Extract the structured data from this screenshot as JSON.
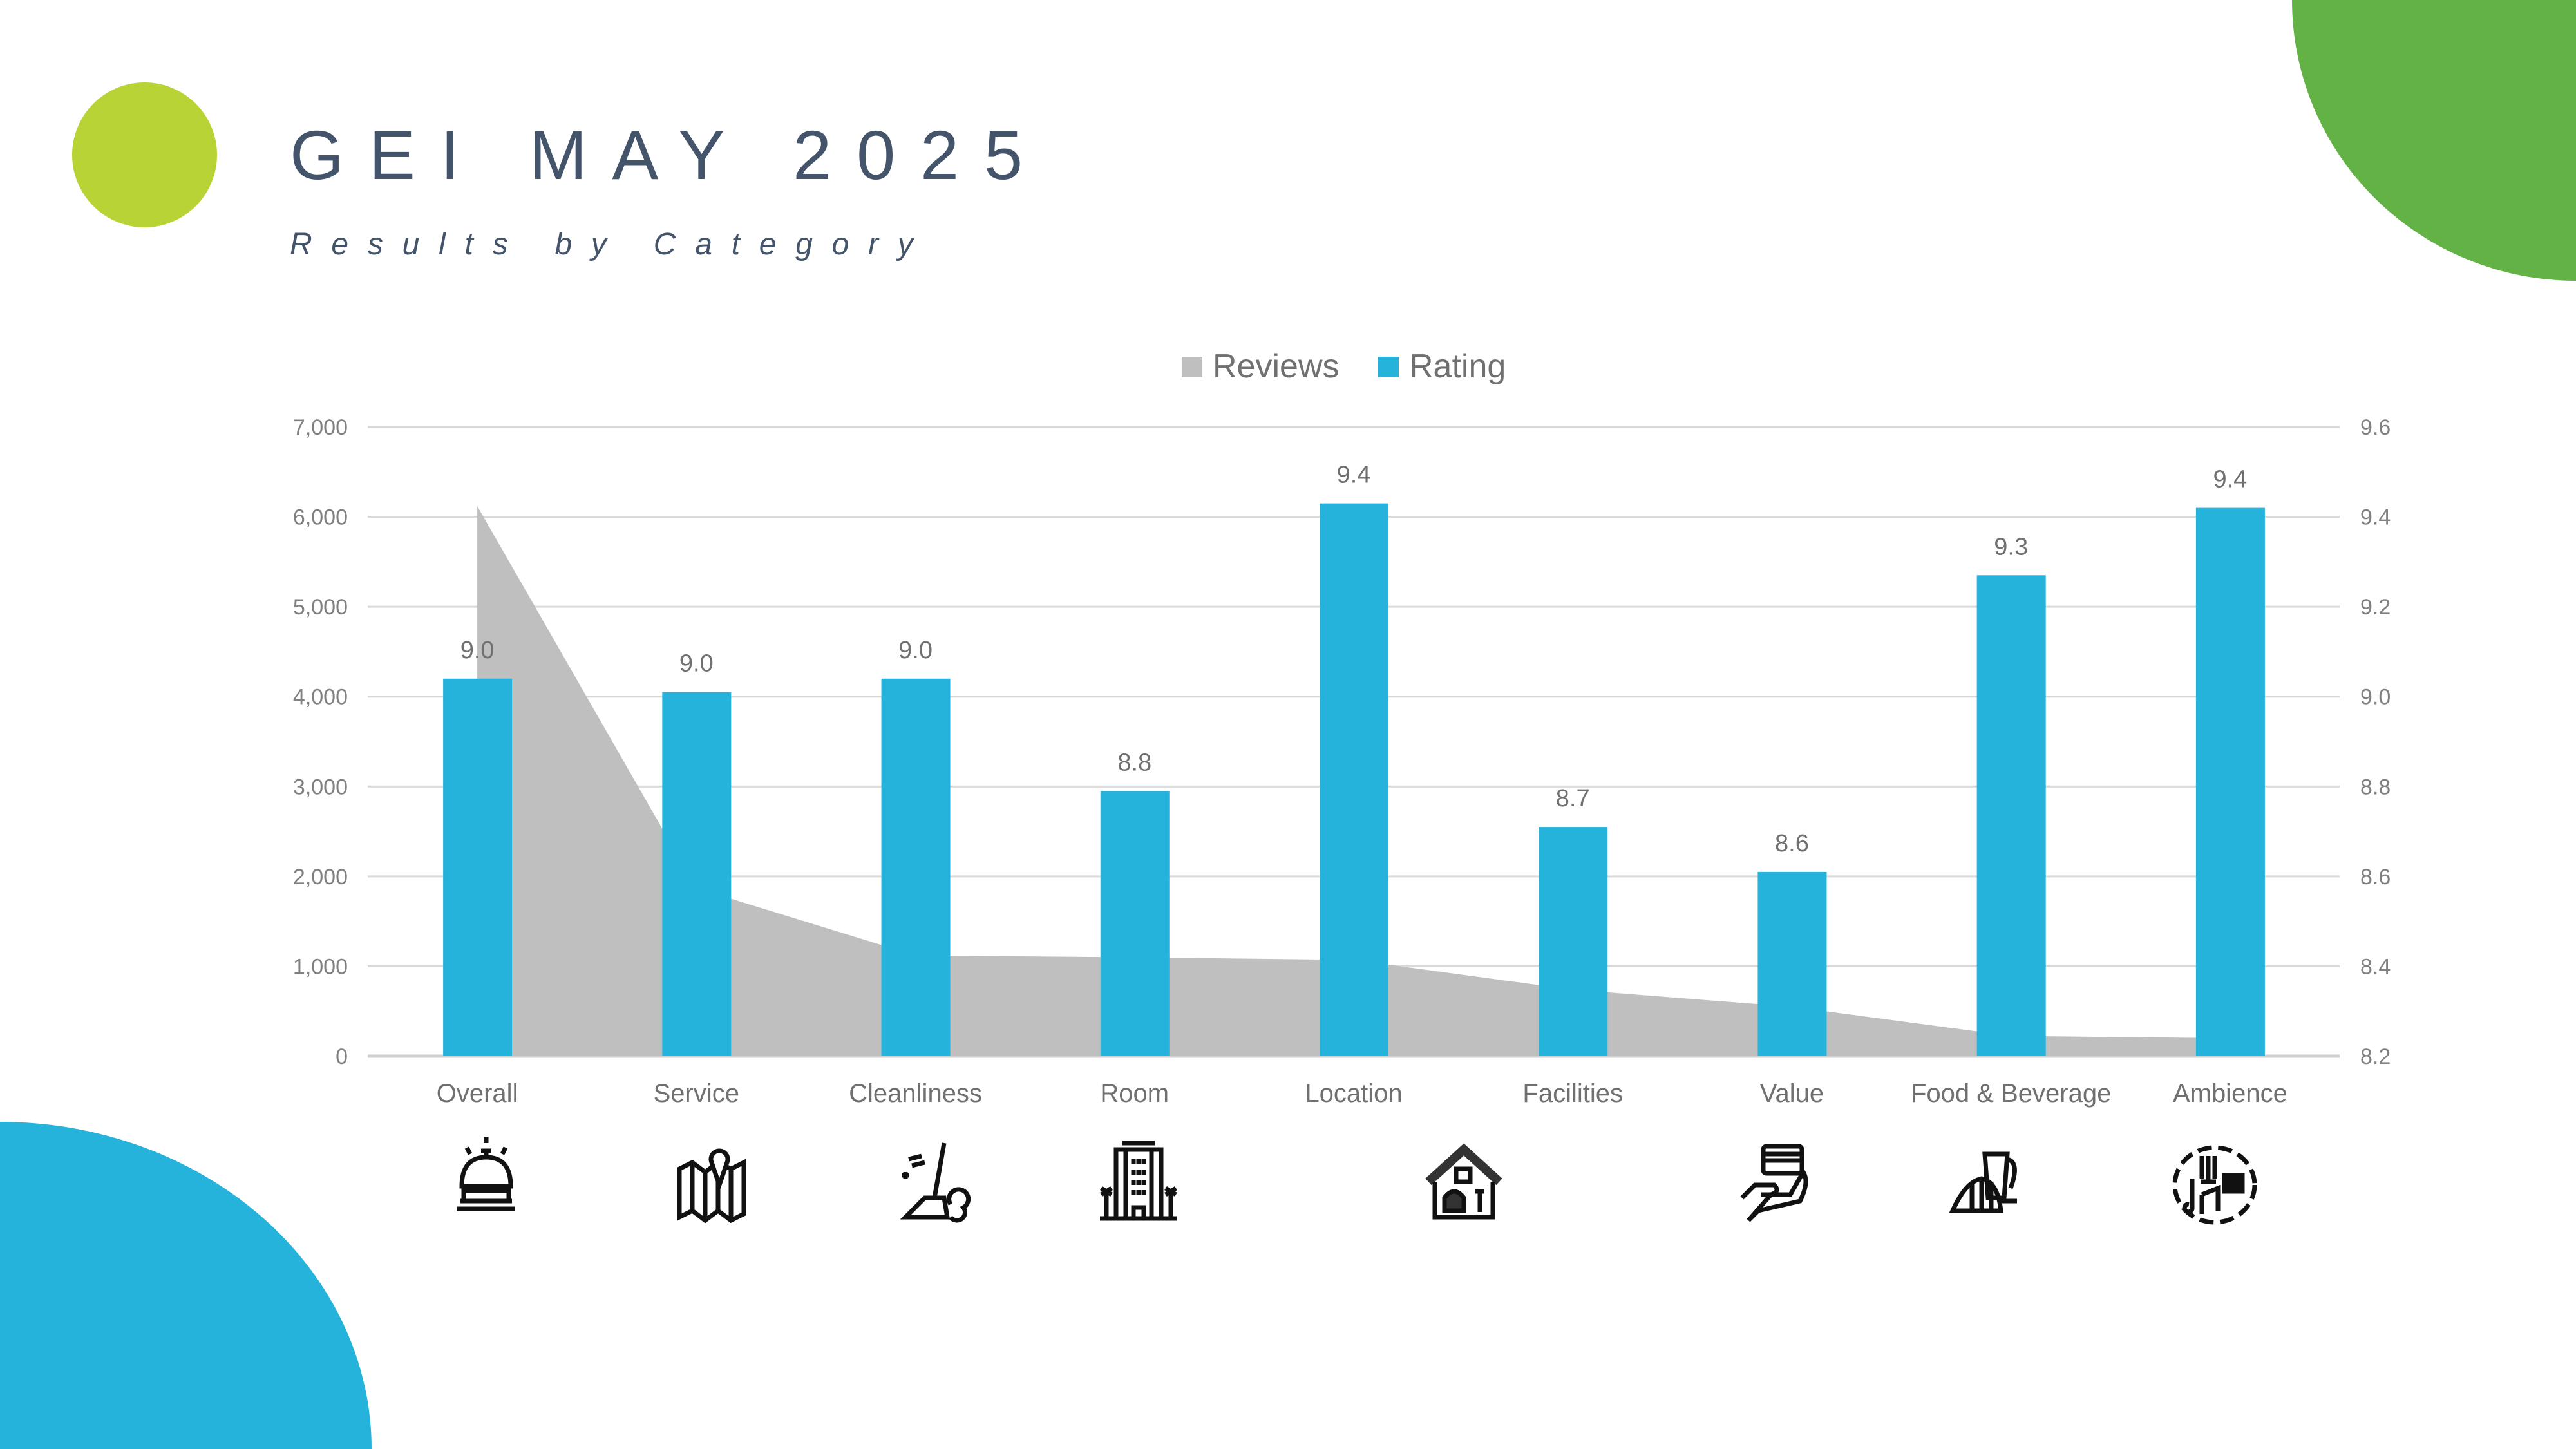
{
  "header": {
    "title": "GEI MAY 2025",
    "subtitle": "Results by Category"
  },
  "colors": {
    "title": "#44546A",
    "lime": "#B8D335",
    "green": "#62B246",
    "blue": "#25B2DB",
    "reviews": "#BFBFBF",
    "rating": "#25B2DB",
    "grid": "#D9D9D9"
  },
  "chart_data": {
    "type": "bar+area",
    "categories": [
      "Overall",
      "Service",
      "Cleanliness",
      "Room",
      "Location",
      "Facilities",
      "Value",
      "Food & Beverage",
      "Ambience"
    ],
    "series": [
      {
        "name": "Reviews",
        "type": "area",
        "axis": "left",
        "values": [
          6120,
          1870,
          1120,
          1100,
          1070,
          740,
          550,
          225,
          200
        ]
      },
      {
        "name": "Rating",
        "type": "bar",
        "axis": "right",
        "values": [
          9.04,
          9.01,
          9.04,
          8.79,
          9.43,
          8.71,
          8.61,
          9.27,
          9.42
        ],
        "labels": [
          "9.0",
          "9.0",
          "9.0",
          "8.8",
          "9.4",
          "8.7",
          "8.6",
          "9.3",
          "9.4"
        ]
      }
    ],
    "y_left": {
      "min": 0,
      "max": 7000,
      "ticks": [
        "0",
        "1,000",
        "2,000",
        "3,000",
        "4,000",
        "5,000",
        "6,000",
        "7,000"
      ]
    },
    "y_right": {
      "min": 8.2,
      "max": 9.6,
      "ticks": [
        "8.2",
        "8.4",
        "8.6",
        "8.8",
        "9.0",
        "9.2",
        "9.4",
        "9.6"
      ]
    },
    "legend": [
      "Reviews",
      "Rating"
    ],
    "legend_position": "top-center",
    "grid": true
  },
  "icons": [
    "service-bell-icon",
    "map-pin-icon",
    "broom-cleaning-icon",
    "hotel-building-icon",
    "house-interior-icon",
    "hand-card-payment-icon",
    "coffee-croissant-icon",
    "music-ambience-icon"
  ]
}
